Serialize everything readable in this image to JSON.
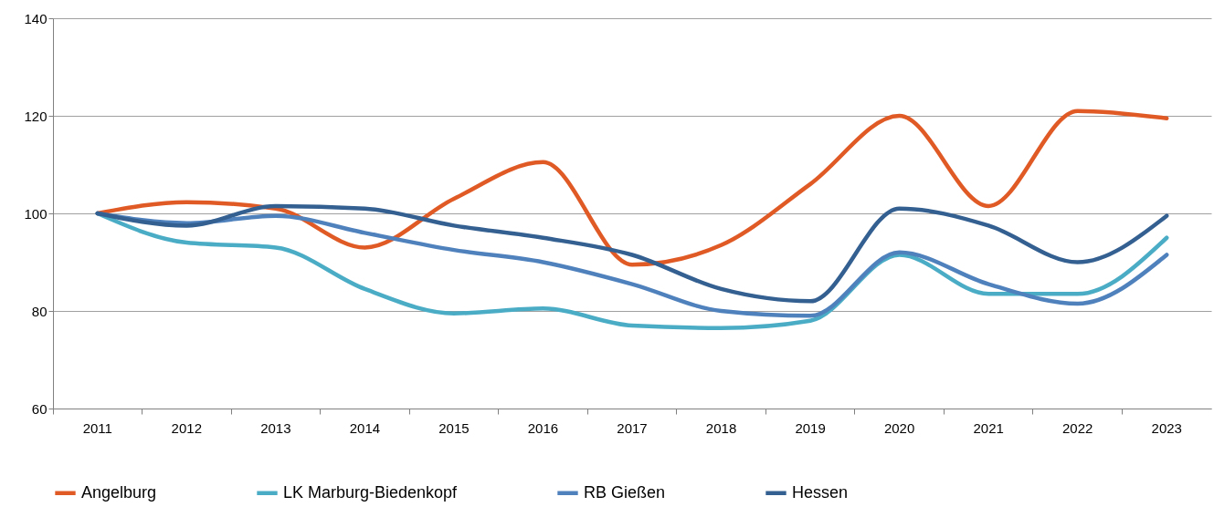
{
  "chart_data": {
    "type": "line",
    "categories": [
      "2011",
      "2012",
      "2013",
      "2014",
      "2015",
      "2016",
      "2017",
      "2018",
      "2019",
      "2020",
      "2021",
      "2022",
      "2023"
    ],
    "ylim": [
      60,
      140
    ],
    "yticks": [
      60,
      80,
      100,
      120,
      140
    ],
    "grid": "y",
    "legend": "bottom",
    "line_style": "solid",
    "series": [
      {
        "name": "Angelburg",
        "color": "#e05a26",
        "values": [
          100,
          102.3,
          101,
          93,
          103,
          110.5,
          89.5,
          93.5,
          106,
          120,
          101.5,
          121,
          119.5
        ]
      },
      {
        "name": "LK Marburg-Biedenkopf",
        "color": "#4bacc6",
        "values": [
          100,
          94,
          93,
          84.5,
          79.5,
          80.5,
          77,
          76.5,
          78,
          91.5,
          83.5,
          83.5,
          95
        ]
      },
      {
        "name": "RB Gießen",
        "color": "#4f81bd",
        "values": [
          100,
          98,
          99.5,
          96,
          92.5,
          90,
          85.5,
          80,
          79,
          92,
          85.5,
          81.5,
          91.5
        ]
      },
      {
        "name": "Hessen",
        "color": "#335f91",
        "values": [
          100,
          97.5,
          101.5,
          101,
          97.5,
          95,
          91.5,
          84.5,
          82,
          101,
          97.5,
          90,
          99.5
        ]
      }
    ]
  }
}
